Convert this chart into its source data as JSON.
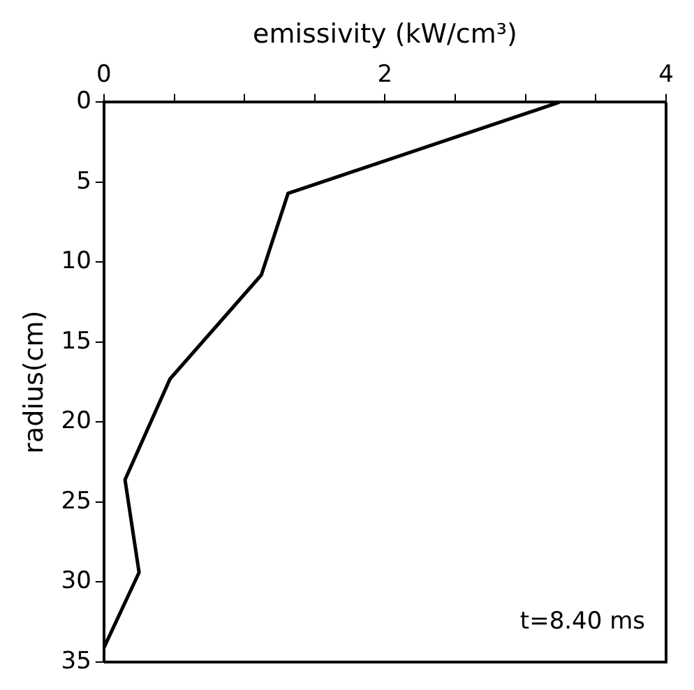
{
  "chart_data": {
    "type": "line",
    "xlabel": "emissivity (kW/cm³)",
    "ylabel": "radius(cm)",
    "x": [
      3.24,
      1.31,
      1.12,
      0.47,
      0.15,
      0.25,
      0
    ],
    "values": [
      0,
      5.7,
      10.8,
      17.3,
      23.6,
      29.4,
      34.1
    ],
    "color": "#000000",
    "xlim": [
      0,
      4
    ],
    "xticks": [
      0,
      {
        "value": 0.5,
        "label": null
      },
      {
        "value": 1,
        "label": null
      },
      {
        "value": 1.5,
        "label": null
      },
      2,
      {
        "value": 2.5,
        "label": null
      },
      {
        "value": 3,
        "label": null
      },
      {
        "value": 3.5,
        "label": null
      },
      4
    ],
    "ylim": [
      35,
      0
    ],
    "yticks": [
      0,
      5,
      10,
      15,
      20,
      25,
      30,
      35
    ],
    "grid": false,
    "legend": false,
    "marker": "none",
    "line_style": "solid",
    "annotations": [
      "t=8.40 ms"
    ]
  }
}
